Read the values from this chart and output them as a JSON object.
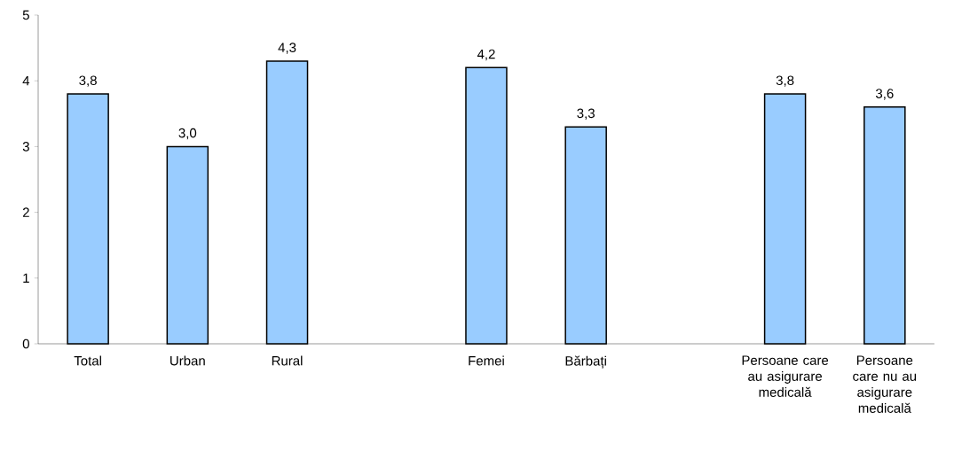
{
  "chart_data": {
    "type": "bar",
    "categories": [
      "Total",
      "Urban",
      "Rural",
      null,
      "Femei",
      "Bărbați",
      null,
      "Persoane care au asigurare medicală",
      "Persoane care nu au asigurare medicală"
    ],
    "values": [
      3.8,
      3.0,
      4.3,
      null,
      4.2,
      3.3,
      null,
      3.8,
      3.6
    ],
    "value_labels": [
      "3,8",
      "3,0",
      "4,3",
      null,
      "4,2",
      "3,3",
      null,
      "3,8",
      "3,6"
    ],
    "color": "#99ccff",
    "ylim": [
      0,
      5
    ],
    "yticks": [
      0,
      1,
      2,
      3,
      4,
      5
    ]
  }
}
